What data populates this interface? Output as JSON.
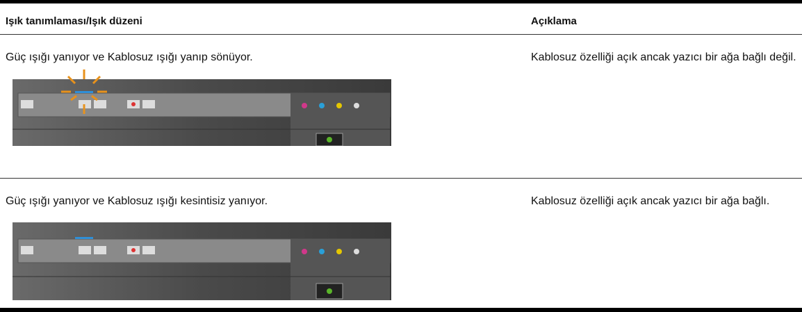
{
  "table": {
    "header": [
      "Işık tanımlaması/Işık düzeni",
      "Açıklama"
    ],
    "rows": [
      [
        "Güç ışığı yanıyor ve Kablosuz ışığı yanıp sönüyor.",
        "Kablosuz özelliği açık ancak yazıcı bir ağa bağlı değil."
      ],
      [
        "Güç ışığı yanıyor ve Kablosuz ışığı kesintisiz yanıyor.",
        "Kablosuz özelliği açık ancak yazıcı bir ağa bağlı."
      ]
    ]
  }
}
